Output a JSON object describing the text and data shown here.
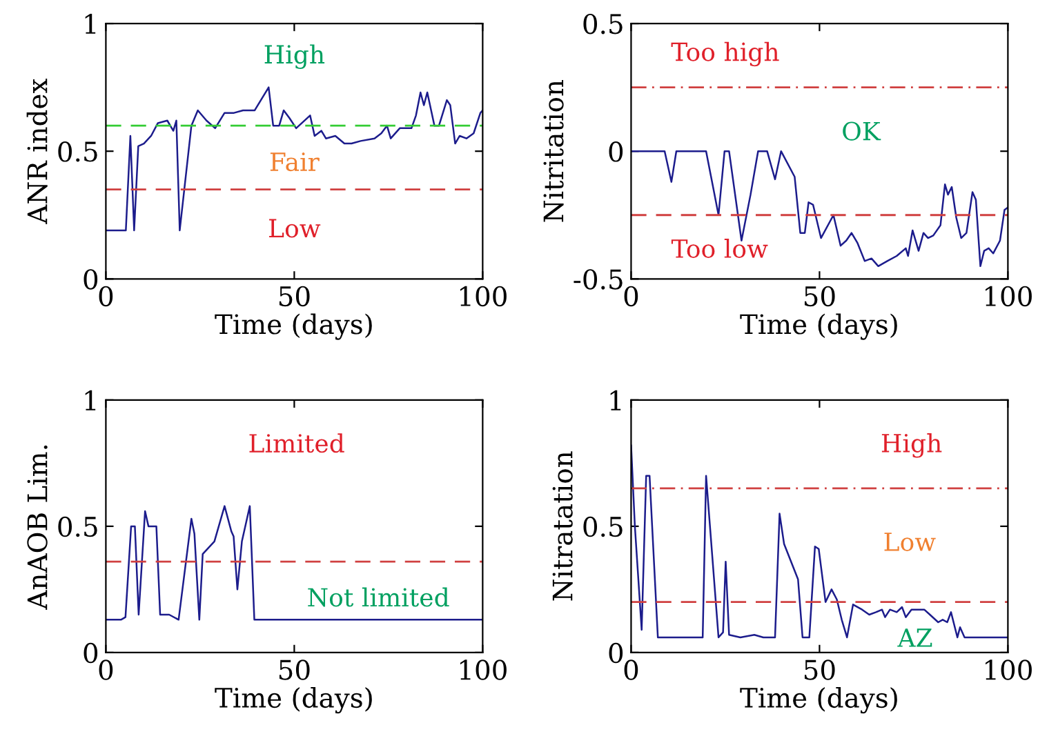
{
  "chart_data": [
    {
      "type": "line",
      "xlabel": "Time (days)",
      "ylabel": "ANR index",
      "xlim": [
        0,
        100
      ],
      "ylim": [
        0,
        1
      ],
      "xticks": [
        0,
        50,
        100
      ],
      "yticks": [
        0,
        0.5,
        1
      ],
      "grid": false,
      "legend": false,
      "series": [
        {
          "color": "#1c1c8c",
          "x": [
            0,
            5.3,
            6.5,
            7.5,
            8.6,
            10.1,
            12,
            13.8,
            16.3,
            17.9,
            18.7,
            19.6,
            22.7,
            24.4,
            26.7,
            29,
            31.5,
            34,
            36.4,
            39.5,
            43.2,
            44.4,
            46,
            47.2,
            48.7,
            50.5,
            54.2,
            55.4,
            57.2,
            58.4,
            60.9,
            63.3,
            65.2,
            67.6,
            71.3,
            73.1,
            74.6,
            75.6,
            78,
            79.2,
            81.1,
            82.3,
            83.5,
            84.4,
            85.3,
            87.2,
            88.4,
            90.5,
            91.4,
            92.7,
            93.9,
            95.7,
            97.6,
            99.4,
            100
          ],
          "values": [
            0.19,
            0.19,
            0.56,
            0.19,
            0.52,
            0.53,
            0.56,
            0.61,
            0.62,
            0.58,
            0.62,
            0.19,
            0.6,
            0.66,
            0.62,
            0.59,
            0.65,
            0.65,
            0.66,
            0.66,
            0.75,
            0.6,
            0.6,
            0.66,
            0.63,
            0.59,
            0.64,
            0.56,
            0.58,
            0.55,
            0.56,
            0.53,
            0.53,
            0.54,
            0.55,
            0.57,
            0.6,
            0.55,
            0.59,
            0.59,
            0.59,
            0.64,
            0.73,
            0.68,
            0.73,
            0.6,
            0.6,
            0.7,
            0.68,
            0.53,
            0.56,
            0.55,
            0.57,
            0.65,
            0.66
          ]
        }
      ],
      "ref_lines": [
        {
          "axis": "y",
          "value": 0.6,
          "color": "#33cc33",
          "line_style": "dashed"
        },
        {
          "axis": "y",
          "value": 0.35,
          "color": "#d04040",
          "line_style": "dashed"
        }
      ],
      "annotations": [
        "High",
        "Fair",
        "Low"
      ]
    },
    {
      "type": "line",
      "xlabel": "Time (days)",
      "ylabel": "Nitritation",
      "xlim": [
        0,
        100
      ],
      "ylim": [
        -0.5,
        0.5
      ],
      "xticks": [
        0,
        50,
        100
      ],
      "yticks": [
        -0.5,
        0,
        0.5
      ],
      "grid": false,
      "legend": false,
      "series": [
        {
          "color": "#1c1c8c",
          "x": [
            0,
            8.9,
            10.7,
            12,
            19.9,
            23.2,
            24.8,
            26,
            29.3,
            31.7,
            33.7,
            36.1,
            38.2,
            39.8,
            43.4,
            44.9,
            46.1,
            47.1,
            48.3,
            50.4,
            53.7,
            55.6,
            57.1,
            58.5,
            60.1,
            62,
            63.8,
            65.6,
            68,
            70.5,
            72.9,
            73.5,
            74.7,
            76.3,
            77.6,
            78.8,
            80.2,
            82.1,
            83.3,
            84.1,
            85.1,
            86.3,
            87.6,
            89,
            90.6,
            91.5,
            92.7,
            93.7,
            94.9,
            96.1,
            97.9,
            99.1,
            100
          ],
          "values": [
            0,
            0,
            -0.12,
            0,
            0,
            -0.25,
            0,
            0,
            -0.35,
            -0.17,
            0,
            0,
            -0.11,
            0,
            -0.1,
            -0.32,
            -0.32,
            -0.2,
            -0.21,
            -0.34,
            -0.25,
            -0.37,
            -0.35,
            -0.32,
            -0.36,
            -0.43,
            -0.42,
            -0.45,
            -0.43,
            -0.41,
            -0.38,
            -0.41,
            -0.31,
            -0.39,
            -0.32,
            -0.34,
            -0.33,
            -0.29,
            -0.13,
            -0.17,
            -0.14,
            -0.26,
            -0.34,
            -0.32,
            -0.16,
            -0.19,
            -0.45,
            -0.39,
            -0.38,
            -0.4,
            -0.35,
            -0.23,
            -0.22
          ]
        }
      ],
      "ref_lines": [
        {
          "axis": "y",
          "value": 0.25,
          "color": "#d04040",
          "line_style": "dashdot"
        },
        {
          "axis": "y",
          "value": -0.25,
          "color": "#d04040",
          "line_style": "dashed"
        }
      ],
      "annotations": [
        "Too high",
        "OK",
        "Too low"
      ]
    },
    {
      "type": "line",
      "xlabel": "Time (days)",
      "ylabel": "AnAOB Lim.",
      "xlim": [
        0,
        100
      ],
      "ylim": [
        0,
        1
      ],
      "xticks": [
        0,
        50,
        100
      ],
      "yticks": [
        0,
        0.5,
        1
      ],
      "grid": false,
      "legend": false,
      "series": [
        {
          "color": "#1c1c8c",
          "x": [
            0,
            2.2,
            4,
            5.2,
            6.7,
            7.7,
            8.7,
            10.4,
            11.3,
            13.4,
            14.4,
            16.8,
            19.3,
            22.7,
            23.5,
            24.8,
            25.7,
            28.8,
            31.5,
            33.3,
            33.9,
            34.9,
            36.1,
            38.2,
            39.4,
            100
          ],
          "values": [
            0.13,
            0.13,
            0.13,
            0.14,
            0.5,
            0.5,
            0.15,
            0.56,
            0.5,
            0.5,
            0.15,
            0.15,
            0.13,
            0.53,
            0.47,
            0.13,
            0.39,
            0.44,
            0.58,
            0.48,
            0.46,
            0.25,
            0.44,
            0.58,
            0.13,
            0.13
          ]
        }
      ],
      "ref_lines": [
        {
          "axis": "y",
          "value": 0.36,
          "color": "#d04040",
          "line_style": "dashed"
        }
      ],
      "annotations": [
        "Limited",
        "Not limited"
      ]
    },
    {
      "type": "line",
      "xlabel": "Time (days)",
      "ylabel": "Nitratation",
      "xlim": [
        0,
        100
      ],
      "ylim": [
        0,
        1
      ],
      "xticks": [
        0,
        50,
        100
      ],
      "yticks": [
        0,
        0.5,
        1
      ],
      "grid": false,
      "legend": false,
      "series": [
        {
          "color": "#1c1c8c",
          "x": [
            0,
            1,
            2.8,
            4,
            4.9,
            7.1,
            19,
            19.9,
            23.2,
            24.4,
            25.1,
            26,
            29,
            32.7,
            35.1,
            38.2,
            39.4,
            40.6,
            44.3,
            45.5,
            47.3,
            48.8,
            49.8,
            51.6,
            53.2,
            54.6,
            55.9,
            57.3,
            58.9,
            61.3,
            63.2,
            65,
            66.6,
            67.4,
            68.7,
            70.5,
            71.9,
            72.9,
            74.4,
            75.9,
            77.8,
            79.3,
            81.5,
            82.7,
            83.9,
            84.9,
            86.6,
            87.3,
            88.5,
            100
          ],
          "values": [
            0.82,
            0.5,
            0.09,
            0.7,
            0.7,
            0.06,
            0.06,
            0.7,
            0.06,
            0.08,
            0.36,
            0.07,
            0.06,
            0.07,
            0.06,
            0.06,
            0.55,
            0.43,
            0.29,
            0.06,
            0.06,
            0.42,
            0.41,
            0.2,
            0.25,
            0.21,
            0.13,
            0.06,
            0.19,
            0.17,
            0.15,
            0.16,
            0.17,
            0.14,
            0.17,
            0.16,
            0.18,
            0.14,
            0.17,
            0.17,
            0.17,
            0.15,
            0.12,
            0.13,
            0.12,
            0.16,
            0.06,
            0.1,
            0.06,
            0.06
          ]
        }
      ],
      "ref_lines": [
        {
          "axis": "y",
          "value": 0.65,
          "color": "#d04040",
          "line_style": "dashdot"
        },
        {
          "axis": "y",
          "value": 0.2,
          "color": "#d04040",
          "line_style": "dashed"
        }
      ],
      "annotations": [
        "High",
        "Low",
        "AZ"
      ]
    }
  ]
}
